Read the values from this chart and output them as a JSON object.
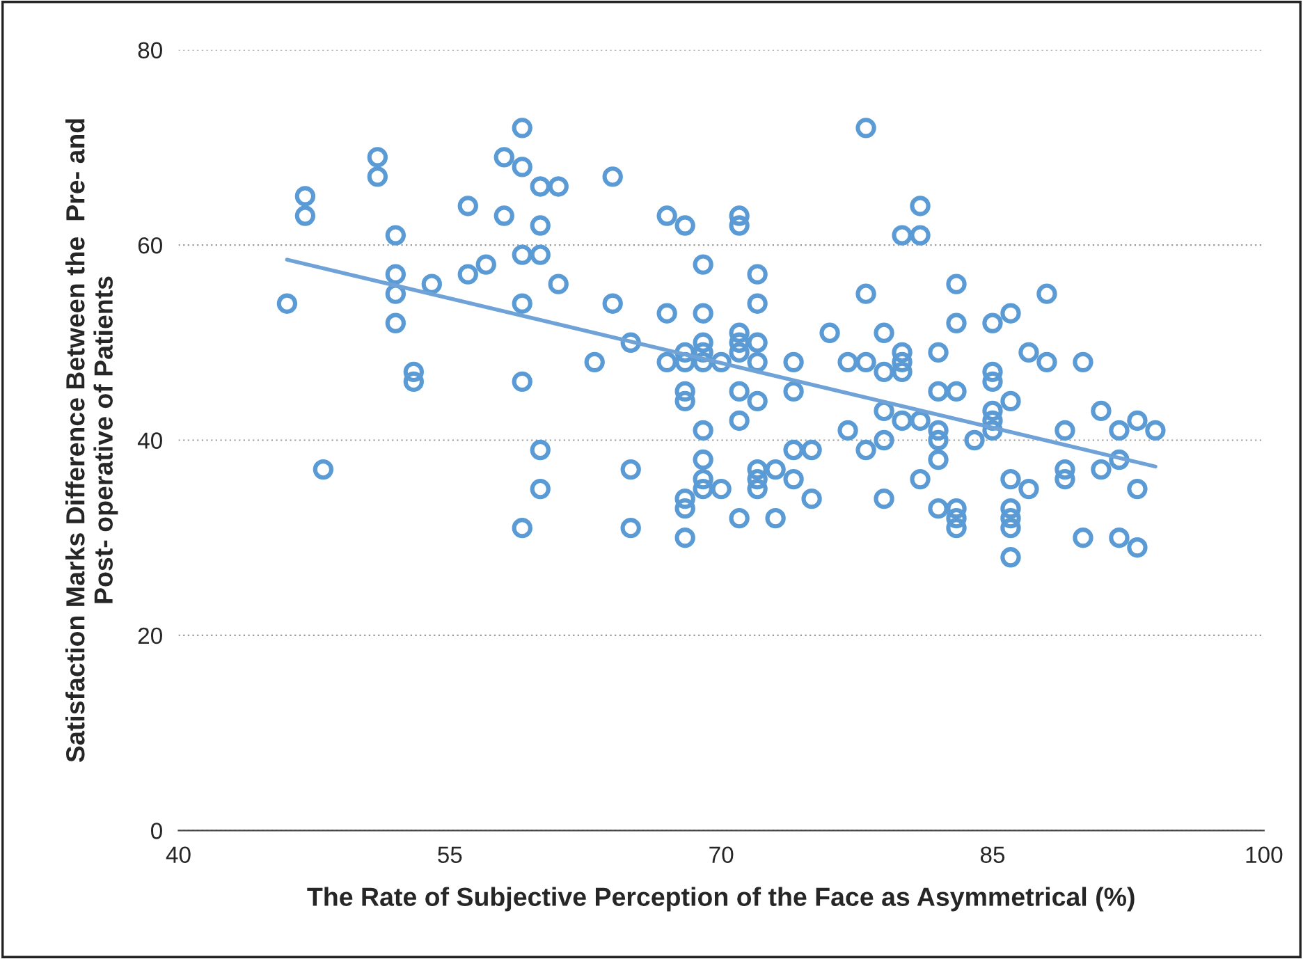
{
  "chart_data": {
    "type": "scatter",
    "xlabel": "The Rate of Subjective Perception of the Face as Asymmetrical (%)",
    "ylabel": "Satisfaction Marks Difference Between the  Pre- and\nPost- operative of Patients",
    "xlim": [
      40,
      100
    ],
    "xticks": [
      40,
      55,
      70,
      85,
      100
    ],
    "ylim": [
      0,
      80
    ],
    "yticks": [
      0,
      20,
      40,
      60,
      80
    ],
    "grid": "y",
    "marker": "circle",
    "series": [
      {
        "color": "#5b9bd5",
        "x": [
          46,
          47,
          47,
          48,
          51,
          51,
          52,
          52,
          52,
          52,
          53,
          53,
          54,
          56,
          56,
          57,
          58,
          58,
          59,
          59,
          59,
          59,
          59,
          59,
          60,
          60,
          60,
          60,
          60,
          61,
          61,
          63,
          64,
          64,
          65,
          65,
          65,
          67,
          67,
          67,
          68,
          68,
          68,
          68,
          68,
          68,
          68,
          68,
          69,
          69,
          69,
          69,
          69,
          69,
          69,
          69,
          69,
          70,
          70,
          71,
          71,
          71,
          71,
          71,
          71,
          71,
          71,
          72,
          72,
          72,
          72,
          72,
          72,
          72,
          72,
          73,
          73,
          74,
          74,
          74,
          74,
          75,
          75,
          76,
          77,
          77,
          78,
          78,
          78,
          78,
          79,
          79,
          79,
          79,
          79,
          80,
          80,
          80,
          80,
          80,
          81,
          81,
          81,
          81,
          82,
          82,
          82,
          82,
          82,
          82,
          83,
          83,
          83,
          83,
          83,
          83,
          84,
          85,
          85,
          85,
          85,
          85,
          85,
          86,
          86,
          86,
          86,
          86,
          86,
          86,
          87,
          87,
          88,
          88,
          89,
          89,
          89,
          90,
          90,
          91,
          91,
          92,
          92,
          92,
          93,
          93,
          93,
          94
        ],
        "values": [
          54,
          65,
          63,
          37,
          69,
          67,
          61,
          57,
          55,
          52,
          47,
          46,
          56,
          64,
          57,
          58,
          69,
          63,
          72,
          68,
          59,
          54,
          46,
          31,
          66,
          62,
          59,
          39,
          35,
          66,
          56,
          48,
          67,
          54,
          50,
          37,
          31,
          63,
          53,
          48,
          62,
          49,
          48,
          45,
          44,
          34,
          33,
          30,
          58,
          53,
          50,
          49,
          48,
          41,
          38,
          36,
          35,
          48,
          35,
          63,
          62,
          51,
          50,
          49,
          45,
          42,
          32,
          57,
          54,
          50,
          48,
          44,
          37,
          36,
          35,
          37,
          32,
          48,
          45,
          39,
          36,
          39,
          34,
          51,
          48,
          41,
          72,
          55,
          48,
          39,
          51,
          47,
          43,
          40,
          34,
          61,
          49,
          48,
          47,
          42,
          64,
          61,
          42,
          36,
          49,
          45,
          41,
          40,
          38,
          33,
          56,
          52,
          45,
          33,
          32,
          31,
          40,
          52,
          47,
          46,
          43,
          42,
          41,
          53,
          44,
          36,
          33,
          32,
          31,
          28,
          49,
          35,
          55,
          48,
          41,
          37,
          36,
          48,
          30,
          43,
          37,
          41,
          38,
          30,
          42,
          35,
          29,
          41
        ]
      },
      {
        "type": "line",
        "color": "#6fa3d8",
        "x": [
          46,
          94
        ],
        "values": [
          58.5,
          37.3
        ],
        "marker": "none",
        "line_style": "solid"
      }
    ]
  }
}
